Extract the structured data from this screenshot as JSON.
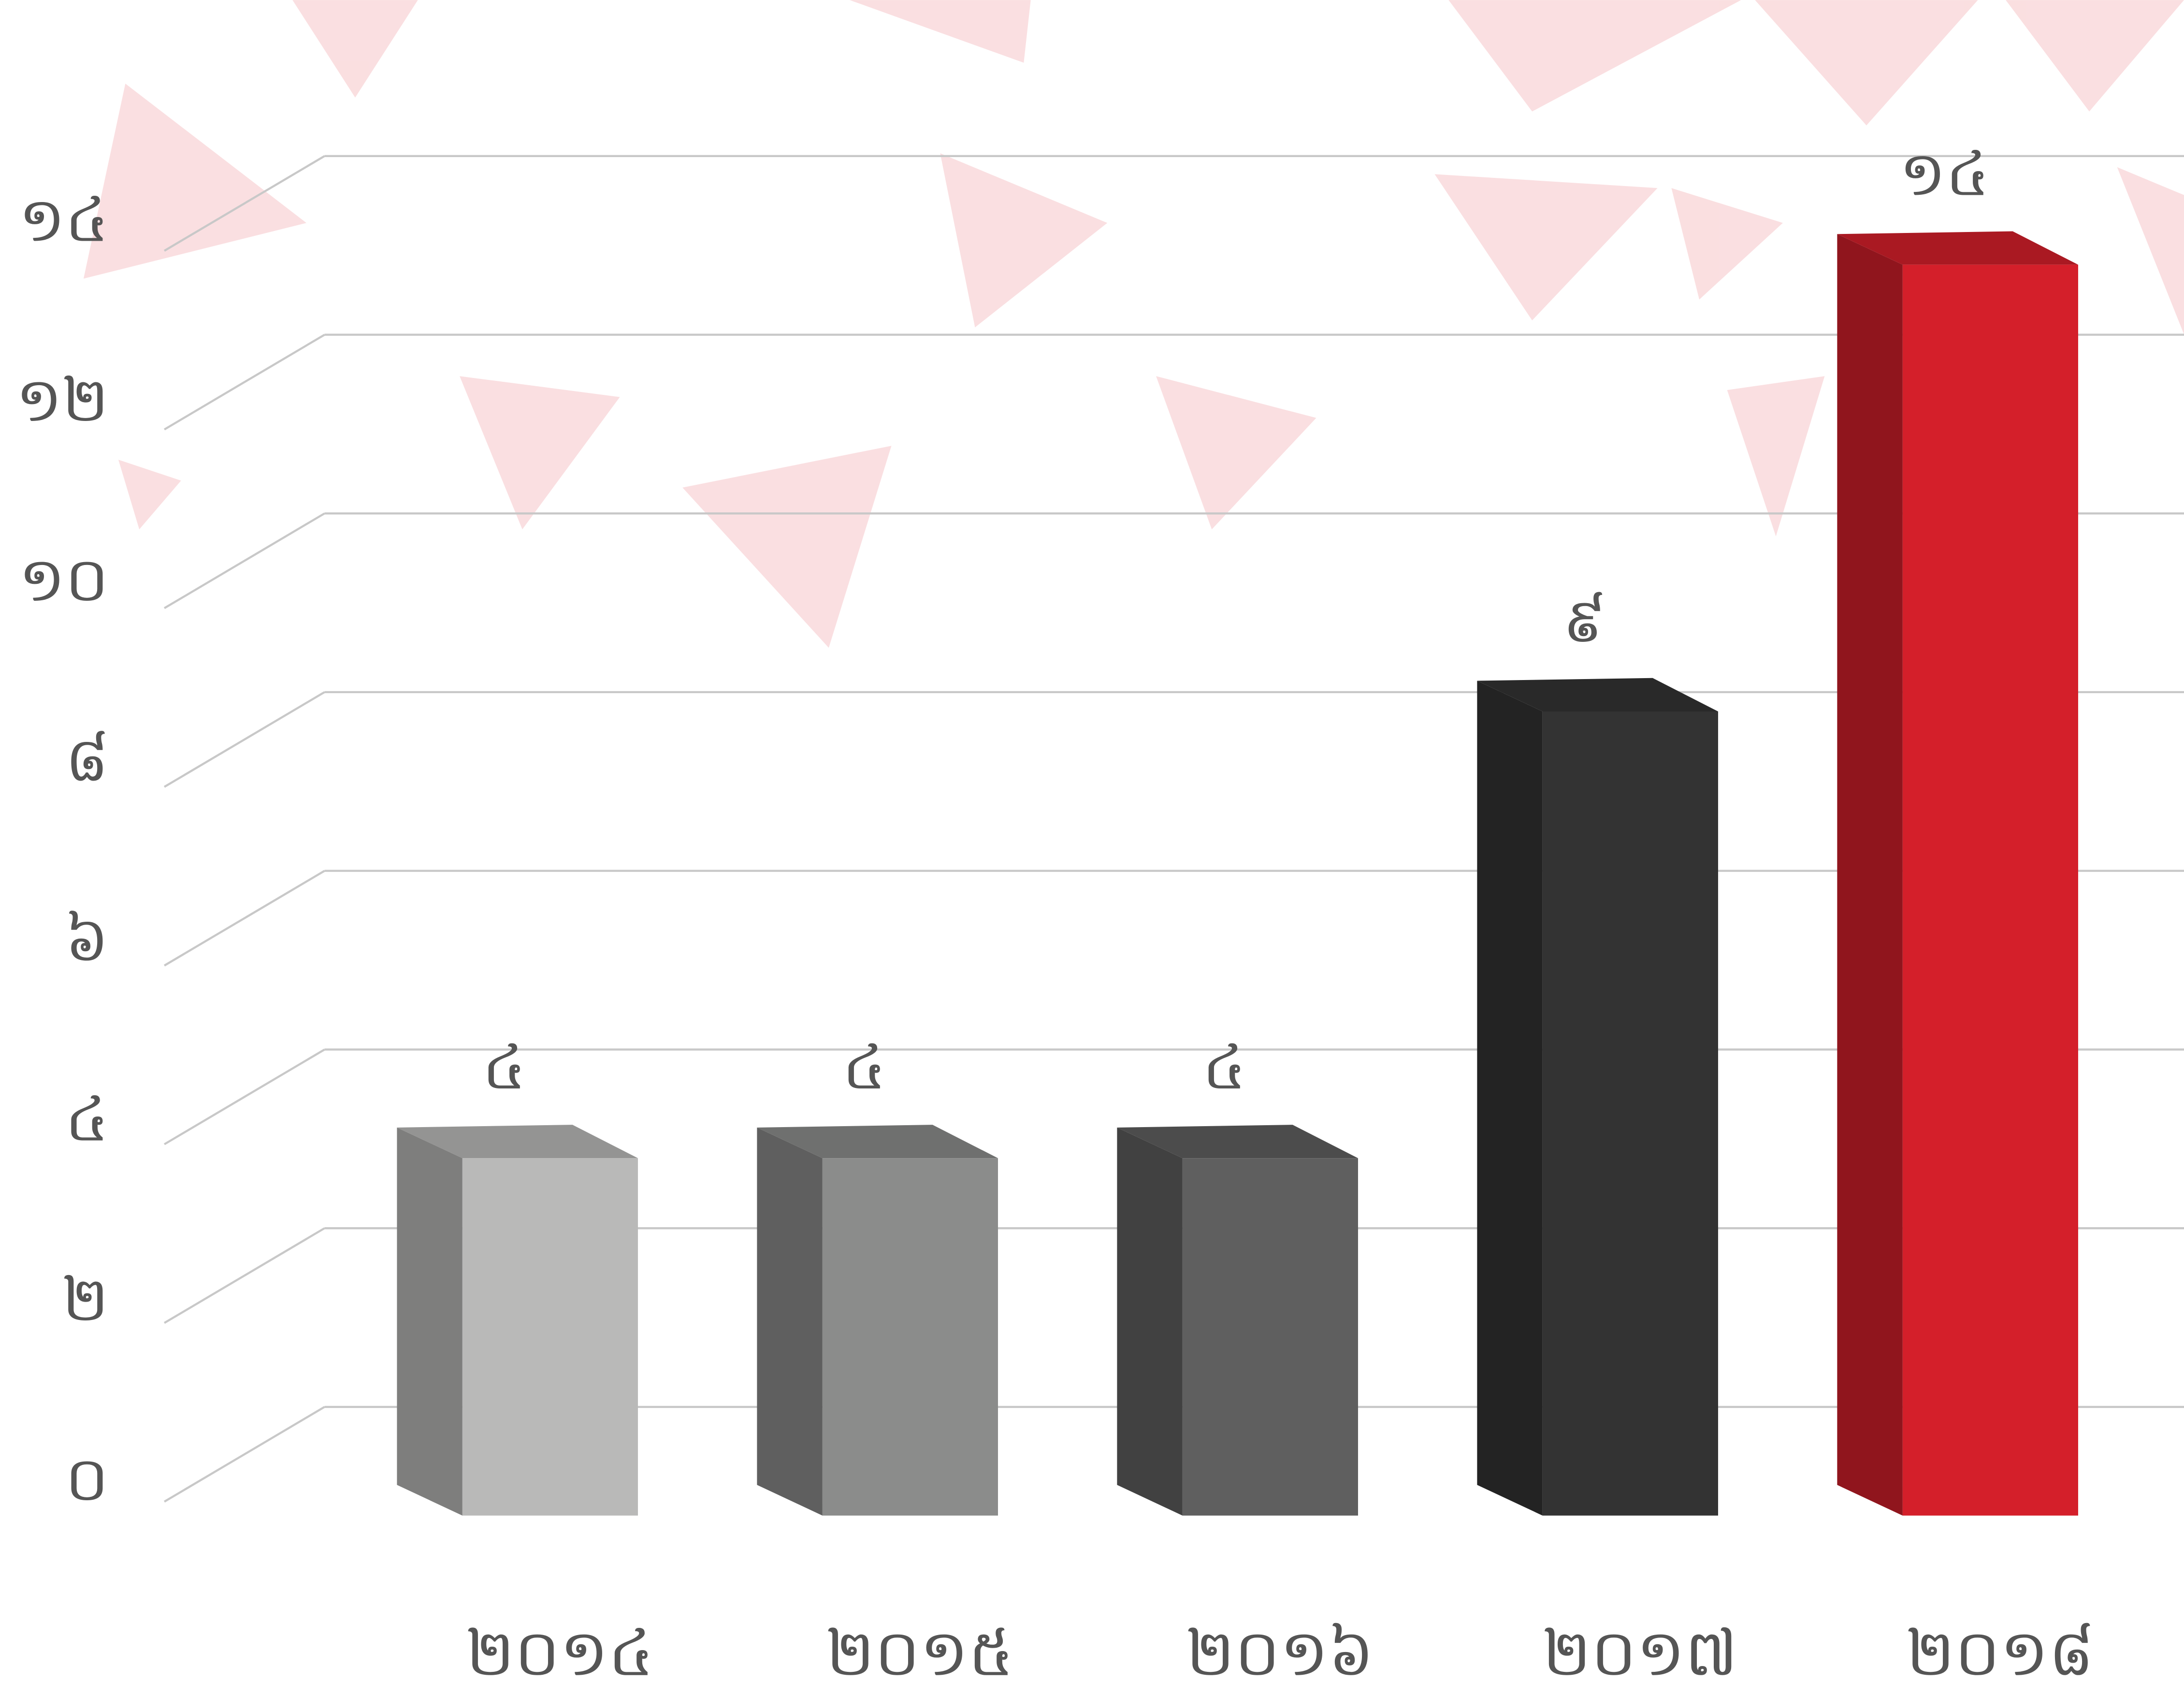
{
  "chart_data": {
    "type": "bar3d",
    "categories": [
      "២០១៤",
      "២០១៥",
      "២០១៦",
      "២០១៧",
      "២០១៨"
    ],
    "values": [
      4,
      4,
      4,
      9,
      14
    ],
    "value_labels": [
      "៤",
      "៤",
      "៤",
      "៩",
      "១៤"
    ],
    "colors": [
      "#b9b9b8",
      "#8b8c8b",
      "#5f5f5f",
      "#333333",
      "#d41f2a"
    ],
    "ylim": [
      0,
      14
    ],
    "yticks": [
      {
        "value": 0,
        "label": "០"
      },
      {
        "value": 2,
        "label": "២"
      },
      {
        "value": 4,
        "label": "៤"
      },
      {
        "value": 6,
        "label": "៦"
      },
      {
        "value": 8,
        "label": "៨"
      },
      {
        "value": 10,
        "label": "១០"
      },
      {
        "value": 12,
        "label": "១២"
      },
      {
        "value": 14,
        "label": "១៤"
      }
    ],
    "grid": true
  }
}
